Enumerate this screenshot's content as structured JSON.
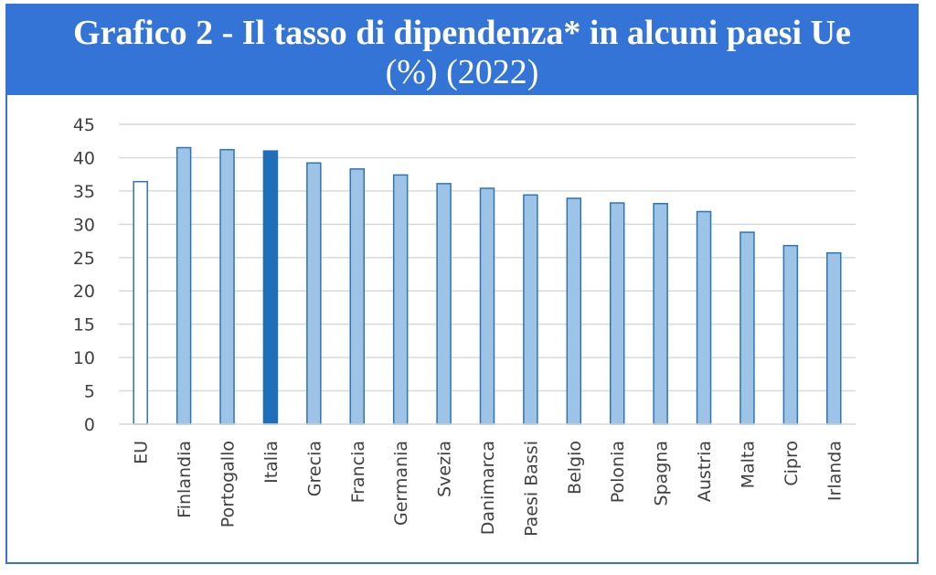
{
  "title": {
    "line1": "Grafico 2 - Il tasso di dipendenza* in alcuni paesi Ue",
    "line2": "(%) (2022)"
  },
  "colors": {
    "band": "#3474d6",
    "bar_fill": "#9dc3e6",
    "bar_stroke": "#2e75b6",
    "highlight_fill": "#1f6fb8",
    "grid": "#d9d9d9"
  },
  "chart_data": {
    "type": "bar",
    "categories": [
      "EU",
      "Finlandia",
      "Portogallo",
      "Italia",
      "Grecia",
      "Francia",
      "Germania",
      "Svezia",
      "Danimarca",
      "Paesi Bassi",
      "Belgio",
      "Polonia",
      "Spagna",
      "Austria",
      "Malta",
      "Cipro",
      "Irlanda"
    ],
    "values": [
      36.4,
      41.5,
      41.2,
      41.0,
      39.2,
      38.3,
      37.4,
      36.1,
      35.4,
      34.4,
      33.9,
      33.2,
      33.1,
      31.9,
      28.8,
      26.8,
      25.7
    ],
    "ylim": [
      0,
      45
    ],
    "yticks": [
      "0",
      "5",
      "10",
      "15",
      "20",
      "25",
      "30",
      "35",
      "40",
      "45"
    ],
    "ytick_values": [
      0,
      5,
      10,
      15,
      20,
      25,
      30,
      35,
      40,
      45
    ],
    "bar_styles": [
      "outline",
      "normal",
      "normal",
      "highlight",
      "normal",
      "normal",
      "normal",
      "normal",
      "normal",
      "normal",
      "normal",
      "normal",
      "normal",
      "normal",
      "normal",
      "normal",
      "normal"
    ],
    "grid": true,
    "legend": "none"
  }
}
